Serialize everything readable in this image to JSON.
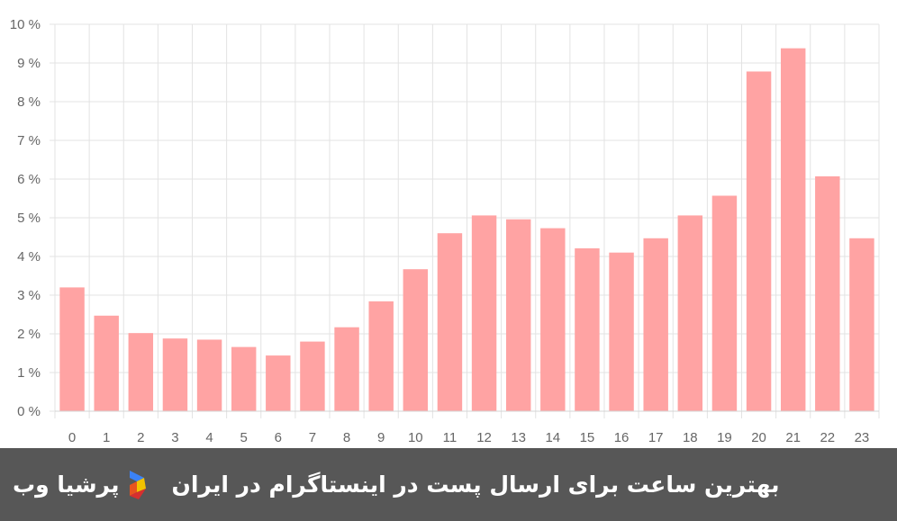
{
  "chart_data": {
    "type": "bar",
    "categories": [
      "0",
      "1",
      "2",
      "3",
      "4",
      "5",
      "6",
      "7",
      "8",
      "9",
      "10",
      "11",
      "12",
      "13",
      "14",
      "15",
      "16",
      "17",
      "18",
      "19",
      "20",
      "21",
      "22",
      "23"
    ],
    "values": [
      3.2,
      2.47,
      2.02,
      1.88,
      1.85,
      1.66,
      1.44,
      1.8,
      2.17,
      2.84,
      3.67,
      4.6,
      5.06,
      4.96,
      4.73,
      4.21,
      4.1,
      4.47,
      5.06,
      5.57,
      8.78,
      9.38,
      6.07,
      4.47
    ],
    "ylim": [
      0,
      10
    ],
    "y_ticks": [
      "0 %",
      "1 %",
      "2 %",
      "3 %",
      "4 %",
      "5 %",
      "6 %",
      "7 %",
      "8 %",
      "9 %",
      "10 %"
    ],
    "grid": true,
    "bar_color": "#ffa3a3",
    "title": "",
    "xlabel": "",
    "ylabel": ""
  },
  "banner": {
    "title": "بهترین ساعت برای ارسال پست در اینستاگرام در ایران",
    "brand_name": "پرشیا وب",
    "background": "#575757"
  },
  "brand_logo": {
    "icon": "persiaweb-logo-icon",
    "colors": [
      "#3b82f6",
      "#f2c200",
      "#e8531f",
      "#d62f2f"
    ]
  }
}
